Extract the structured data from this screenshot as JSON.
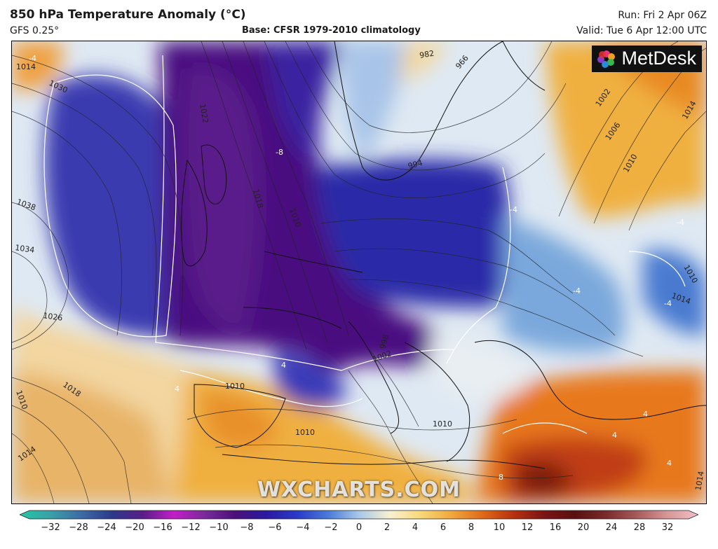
{
  "header": {
    "title": "850 hPa Temperature Anomaly (°C)",
    "model": "GFS 0.25°",
    "base": "Base: CFSR 1979-2010 climatology",
    "run": "Run: Fri 2 Apr 06Z",
    "valid": "Valid: Tue 6 Apr 12:00 UTC"
  },
  "logo": {
    "text": "MetDesk",
    "icon": "metdesk-pinwheel-icon"
  },
  "watermark": "WXCHARTS.COM",
  "isobar_labels": [
    "1030",
    "1038",
    "1034",
    "1026",
    "1010",
    "1018",
    "1014",
    "1022",
    "1018",
    "1010",
    "994",
    "982",
    "966",
    "1002",
    "1006",
    "1010",
    "1014",
    "1010",
    "1014",
    "1002",
    "998",
    "1010",
    "1010",
    "1010",
    "1014",
    "1014"
  ],
  "anomaly_labels": [
    "-8",
    "-4",
    "-4",
    "-4",
    "-4",
    "4",
    "4",
    "4",
    "4",
    "8",
    "4",
    "-4"
  ],
  "colorbar": {
    "ticks": [
      "−32",
      "−28",
      "−24",
      "−20",
      "−16",
      "−12",
      "−10",
      "−8",
      "−6",
      "−4",
      "−2",
      "0",
      "2",
      "4",
      "6",
      "8",
      "10",
      "12",
      "16",
      "20",
      "24",
      "28",
      "32"
    ],
    "colors": [
      "#22c8a4",
      "#3aa0a8",
      "#3d6aa6",
      "#2b3a8a",
      "#5a1d8a",
      "#c21ec8",
      "#7a2a9a",
      "#4a0f7a",
      "#2a1aa0",
      "#2a3ac8",
      "#4a7ad8",
      "#a8c8e8",
      "#f8f0d0",
      "#f8d878",
      "#f0a83c",
      "#e06a1a",
      "#b8300e",
      "#7a1414",
      "#5a1010",
      "#7a2a2a",
      "#a85a5a",
      "#d89898",
      "#f0c0c8"
    ]
  },
  "colors": {
    "deep_cold": "#3a0f6a",
    "cold": "#2c2aa8",
    "cool": "#6a9ad8",
    "neutral": "#e8eef4",
    "warm": "#f0b040",
    "hot": "#d85a14",
    "very_hot": "#8a1a10"
  }
}
